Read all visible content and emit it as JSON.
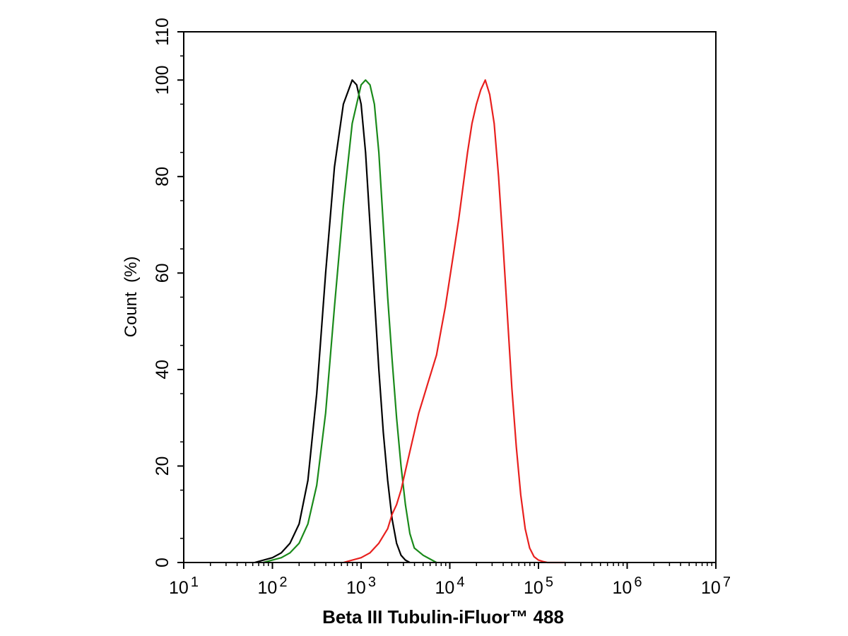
{
  "chart_data": {
    "type": "line",
    "title": "",
    "xlabel": "Beta III Tubulin-iFluor™ 488",
    "ylabel": "Count  (%)",
    "x_scale": "log",
    "xlim": [
      10,
      10000000
    ],
    "ylim": [
      0,
      110
    ],
    "x_ticks": [
      {
        "base": "10",
        "exp": "1"
      },
      {
        "base": "10",
        "exp": "2"
      },
      {
        "base": "10",
        "exp": "3"
      },
      {
        "base": "10",
        "exp": "4"
      },
      {
        "base": "10",
        "exp": "5"
      },
      {
        "base": "10",
        "exp": "6"
      },
      {
        "base": "10",
        "exp": "7"
      }
    ],
    "y_ticks": [
      "0",
      "20",
      "40",
      "60",
      "80",
      "100",
      "110"
    ],
    "y_tick_values": [
      0,
      20,
      40,
      60,
      80,
      100,
      110
    ],
    "grid": false,
    "series": [
      {
        "color": "#000000",
        "x": [
          63,
          100,
          126,
          158,
          200,
          251,
          316,
          398,
          501,
          631,
          794,
          891,
          1000,
          1122,
          1259,
          1413,
          1585,
          1778,
          1995,
          2239,
          2512,
          2818,
          3162,
          3548
        ],
        "y": [
          0,
          1,
          2,
          4,
          8,
          17,
          35,
          60,
          82,
          95,
          100,
          99,
          95,
          85,
          70,
          55,
          40,
          27,
          17,
          9,
          4,
          1.5,
          0.5,
          0
        ]
      },
      {
        "color": "#1a8a1a",
        "x": [
          79,
          126,
          158,
          200,
          251,
          316,
          398,
          501,
          631,
          794,
          1000,
          1122,
          1259,
          1413,
          1585,
          1778,
          1995,
          2239,
          2512,
          2818,
          3162,
          3548,
          3981,
          5012,
          6310,
          7079
        ],
        "y": [
          0,
          1,
          2,
          4,
          8,
          16,
          31,
          53,
          74,
          91,
          99,
          100,
          99,
          95,
          85,
          70,
          55,
          42,
          30,
          20,
          12,
          6,
          3,
          1.5,
          0.5,
          0
        ]
      },
      {
        "color": "#e8201e",
        "x": [
          631,
          1000,
          1259,
          1585,
          1995,
          2239,
          2512,
          2818,
          3162,
          3548,
          3981,
          4467,
          5012,
          5623,
          6310,
          7079,
          7943,
          8913,
          10000,
          11220,
          12589,
          14125,
          15849,
          17783,
          19953,
          22387,
          25119,
          28184,
          31623,
          35481,
          39811,
          44668,
          50119,
          56234,
          63096,
          70795,
          79433,
          89125,
          100000,
          112202,
          125893,
          141254,
          158489,
          177828,
          199526
        ],
        "y": [
          0,
          1,
          2,
          4,
          7,
          10,
          12,
          15,
          19,
          23,
          27,
          31,
          34,
          37,
          40,
          43,
          48,
          53,
          59,
          65,
          71,
          78,
          85,
          91,
          95,
          98,
          100,
          97,
          91,
          80,
          66,
          51,
          36,
          24,
          14,
          7,
          3,
          1.2,
          0.5,
          0.2,
          0,
          0,
          0,
          0,
          0
        ]
      }
    ]
  }
}
